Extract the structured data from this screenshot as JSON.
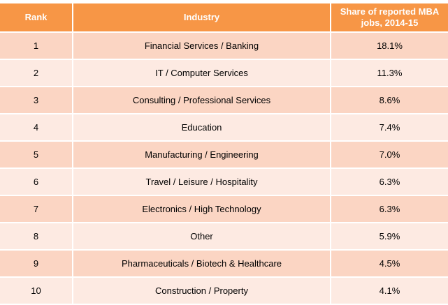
{
  "chart_data": {
    "type": "table",
    "columns": [
      "Rank",
      "Industry",
      "Share of reported MBA jobs, 2014-15"
    ],
    "rows": [
      {
        "rank": "1",
        "industry": "Financial Services / Banking",
        "share": "18.1%"
      },
      {
        "rank": "2",
        "industry": "IT / Computer Services",
        "share": "11.3%"
      },
      {
        "rank": "3",
        "industry": "Consulting / Professional Services",
        "share": "8.6%"
      },
      {
        "rank": "4",
        "industry": "Education",
        "share": "7.4%"
      },
      {
        "rank": "5",
        "industry": "Manufacturing / Engineering",
        "share": "7.0%"
      },
      {
        "rank": "6",
        "industry": "Travel / Leisure / Hospitality",
        "share": "6.3%"
      },
      {
        "rank": "7",
        "industry": "Electronics / High Technology",
        "share": "6.3%"
      },
      {
        "rank": "8",
        "industry": "Other",
        "share": "5.9%"
      },
      {
        "rank": "9",
        "industry": "Pharmaceuticals / Biotech & Healthcare",
        "share": "4.5%"
      },
      {
        "rank": "10",
        "industry": "Construction / Property",
        "share": "4.1%"
      }
    ],
    "colors": {
      "header_bg": "#f79646",
      "row_odd_bg": "#fbd5c3",
      "row_even_bg": "#fdeae2"
    }
  }
}
